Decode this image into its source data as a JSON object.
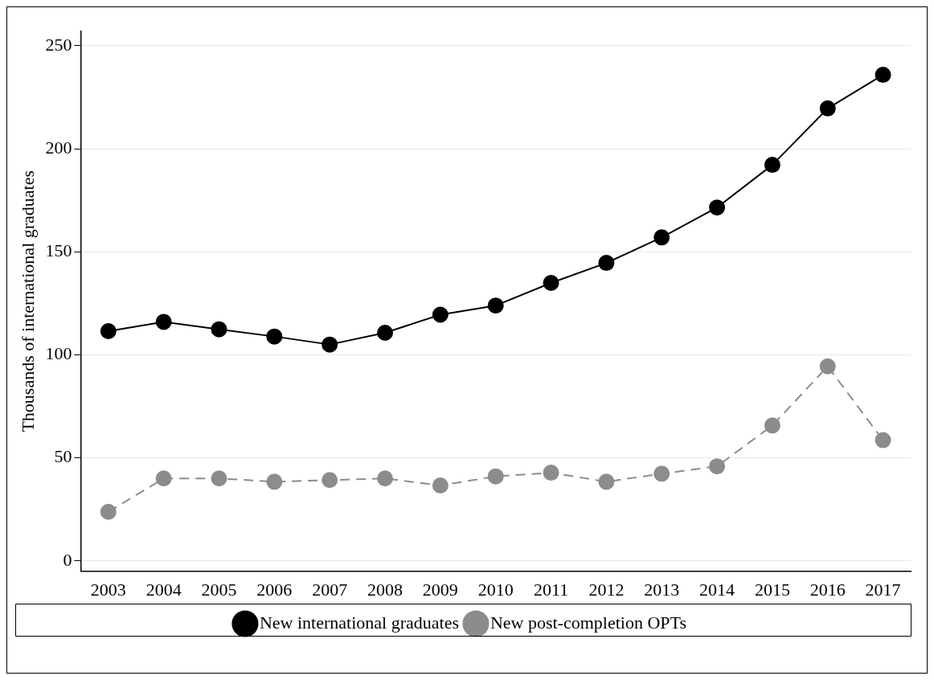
{
  "chart_data": {
    "type": "line",
    "ylabel": "Thousands of international graduates",
    "categories": [
      "2003",
      "2004",
      "2005",
      "2006",
      "2007",
      "2008",
      "2009",
      "2010",
      "2011",
      "2012",
      "2013",
      "2014",
      "2015",
      "2016",
      "2017"
    ],
    "series": [
      {
        "name": "New international graduates",
        "color": "#000000",
        "line_style": "solid",
        "values": [
          111.5,
          116,
          112.4,
          108.9,
          105,
          110.7,
          119.5,
          123.9,
          134.9,
          144.6,
          157,
          171.5,
          192.2,
          219.6,
          235.9
        ]
      },
      {
        "name": "New post-completion OPTs",
        "color": "#8c8c8c",
        "line_style": "dashed",
        "values": [
          23.8,
          40,
          40,
          38.4,
          39.2,
          40,
          36.6,
          41,
          42.8,
          38.4,
          42.3,
          45.9,
          65.7,
          94.4,
          58.6
        ]
      }
    ],
    "ylim": [
      -5,
      257
    ],
    "yticks": [
      0,
      50,
      100,
      150,
      200,
      250
    ],
    "grid": "y",
    "legend": "bottom",
    "marker": "circle"
  }
}
